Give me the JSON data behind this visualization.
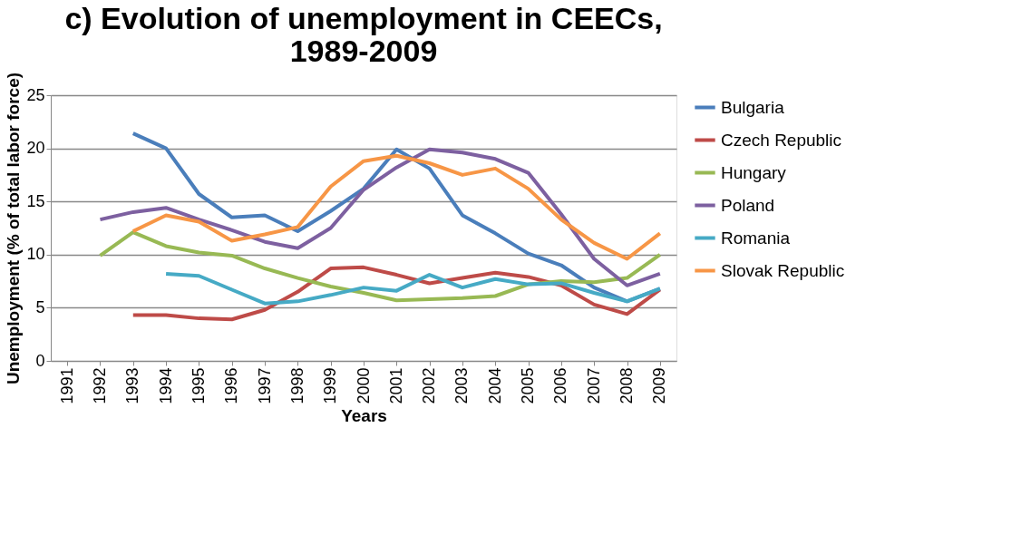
{
  "chart_data": {
    "type": "line",
    "title": [
      "c) Evolution of unemployment in CEECs,",
      "1989-2009"
    ],
    "xlabel": "Years",
    "ylabel": "Unemployment (% of total labor force)",
    "categories": [
      "1991",
      "1992",
      "1993",
      "1994",
      "1995",
      "1996",
      "1997",
      "1998",
      "1999",
      "2000",
      "2001",
      "2002",
      "2003",
      "2004",
      "2005",
      "2006",
      "2007",
      "2008",
      "2009"
    ],
    "series": [
      {
        "name": "Bulgaria",
        "color": "#4a7ebb",
        "values": [
          null,
          null,
          21.4,
          20.0,
          15.7,
          13.5,
          13.7,
          12.2,
          14.1,
          16.2,
          19.9,
          18.1,
          13.7,
          12.0,
          10.1,
          9.0,
          6.9,
          5.6,
          6.8
        ]
      },
      {
        "name": "Czech Republic",
        "color": "#be4b48",
        "values": [
          null,
          null,
          4.3,
          4.3,
          4.0,
          3.9,
          4.8,
          6.5,
          8.7,
          8.8,
          8.1,
          7.3,
          7.8,
          8.3,
          7.9,
          7.1,
          5.3,
          4.4,
          6.7
        ]
      },
      {
        "name": "Hungary",
        "color": "#98b954",
        "values": [
          null,
          9.9,
          12.1,
          10.8,
          10.2,
          9.9,
          8.7,
          7.8,
          7.0,
          6.4,
          5.7,
          5.8,
          5.9,
          6.1,
          7.2,
          7.5,
          7.4,
          7.8,
          10.0
        ]
      },
      {
        "name": "Poland",
        "color": "#7d60a0",
        "values": [
          null,
          13.3,
          14.0,
          14.4,
          13.3,
          12.3,
          11.2,
          10.6,
          12.5,
          16.1,
          18.2,
          19.9,
          19.6,
          19.0,
          17.7,
          13.8,
          9.6,
          7.1,
          8.2
        ]
      },
      {
        "name": "Romania",
        "color": "#46aac5",
        "values": [
          null,
          null,
          null,
          8.2,
          8.0,
          6.7,
          5.4,
          5.6,
          6.2,
          6.9,
          6.6,
          8.1,
          6.9,
          7.7,
          7.2,
          7.3,
          6.4,
          5.6,
          6.8
        ]
      },
      {
        "name": "Slovak Republic",
        "color": "#f79646",
        "values": [
          null,
          null,
          12.2,
          13.7,
          13.1,
          11.3,
          11.9,
          12.6,
          16.4,
          18.8,
          19.3,
          18.6,
          17.5,
          18.1,
          16.2,
          13.3,
          11.1,
          9.6,
          12.0
        ]
      }
    ],
    "ylim": [
      0,
      25
    ],
    "yticks": [
      0,
      5,
      10,
      15,
      20,
      25
    ],
    "grid": "y",
    "legend": "right",
    "marker": "none",
    "line_style": "solid"
  }
}
